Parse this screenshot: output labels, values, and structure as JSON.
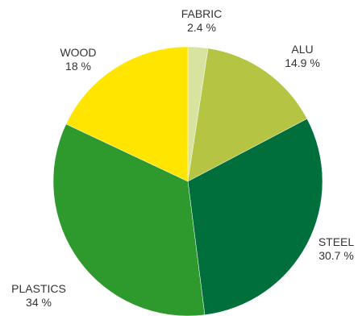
{
  "chart_data": {
    "type": "pie",
    "title": "",
    "slices": [
      {
        "name": "FABRIC",
        "value": 2.4,
        "label": "2.4 %",
        "color": "#d9e3a0"
      },
      {
        "name": "ALU",
        "value": 14.9,
        "label": "14.9 %",
        "color": "#b5c443"
      },
      {
        "name": "STEEL",
        "value": 30.7,
        "label": "30.7 %",
        "color": "#006f3c"
      },
      {
        "name": "PLASTICS",
        "value": 34,
        "label": "34 %",
        "color": "#2e9a2e"
      },
      {
        "name": "WOOD",
        "value": 18,
        "label": "18 %",
        "color": "#ffe500"
      }
    ],
    "start": "top",
    "direction": "clockwise"
  }
}
